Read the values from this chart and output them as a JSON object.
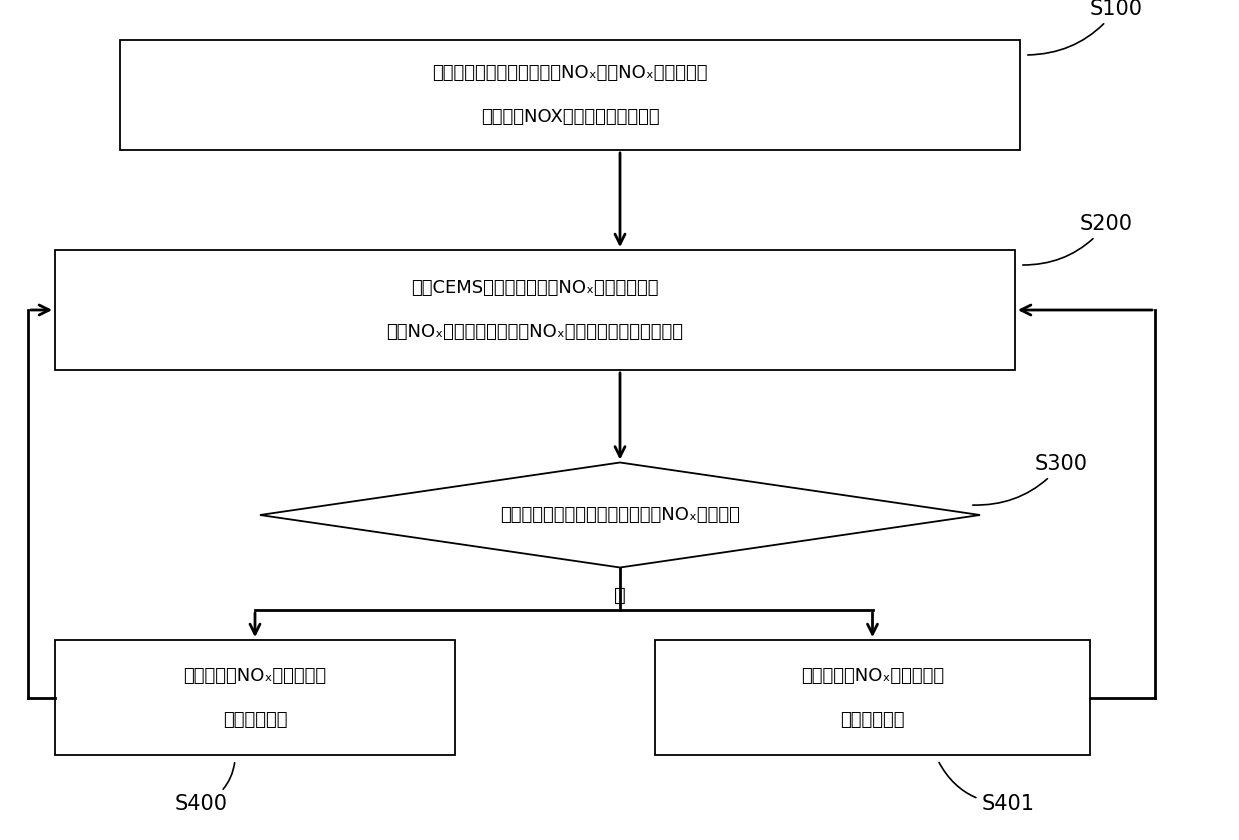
{
  "bg_color": "#ffffff",
  "box_color": "#ffffff",
  "box_edge_color": "#000000",
  "arrow_color": "#000000",
  "text_color": "#000000",
  "s100_line1": "获取经反应器处理后排出的NOₓ的后NOₓ浓度均値，",
  "s100_line2": "并根据后NOX浓度均値控制噴氨量",
  "s200_line1": "获取CEMS在烟囱处检测的NOₓ排出浓度値，",
  "s200_line2": "根据NOₓ排出浓度値计算出NOₓ排出量的整点每小时均値",
  "s300_text": "判断整点每小时均値是否满足预讽NOₓ排出阈値",
  "s400_line1": "若高于预讽NOₓ排出阈値，",
  "s400_line2": "则增大噴氨量",
  "s401_line1": "若低于预讽NOₓ排出阈値，",
  "s401_line2": "则减少噴氨量",
  "no_label": "否",
  "label_s100": "S100",
  "label_s200": "S200",
  "label_s300": "S300",
  "label_s400": "S400",
  "label_s401": "S401"
}
